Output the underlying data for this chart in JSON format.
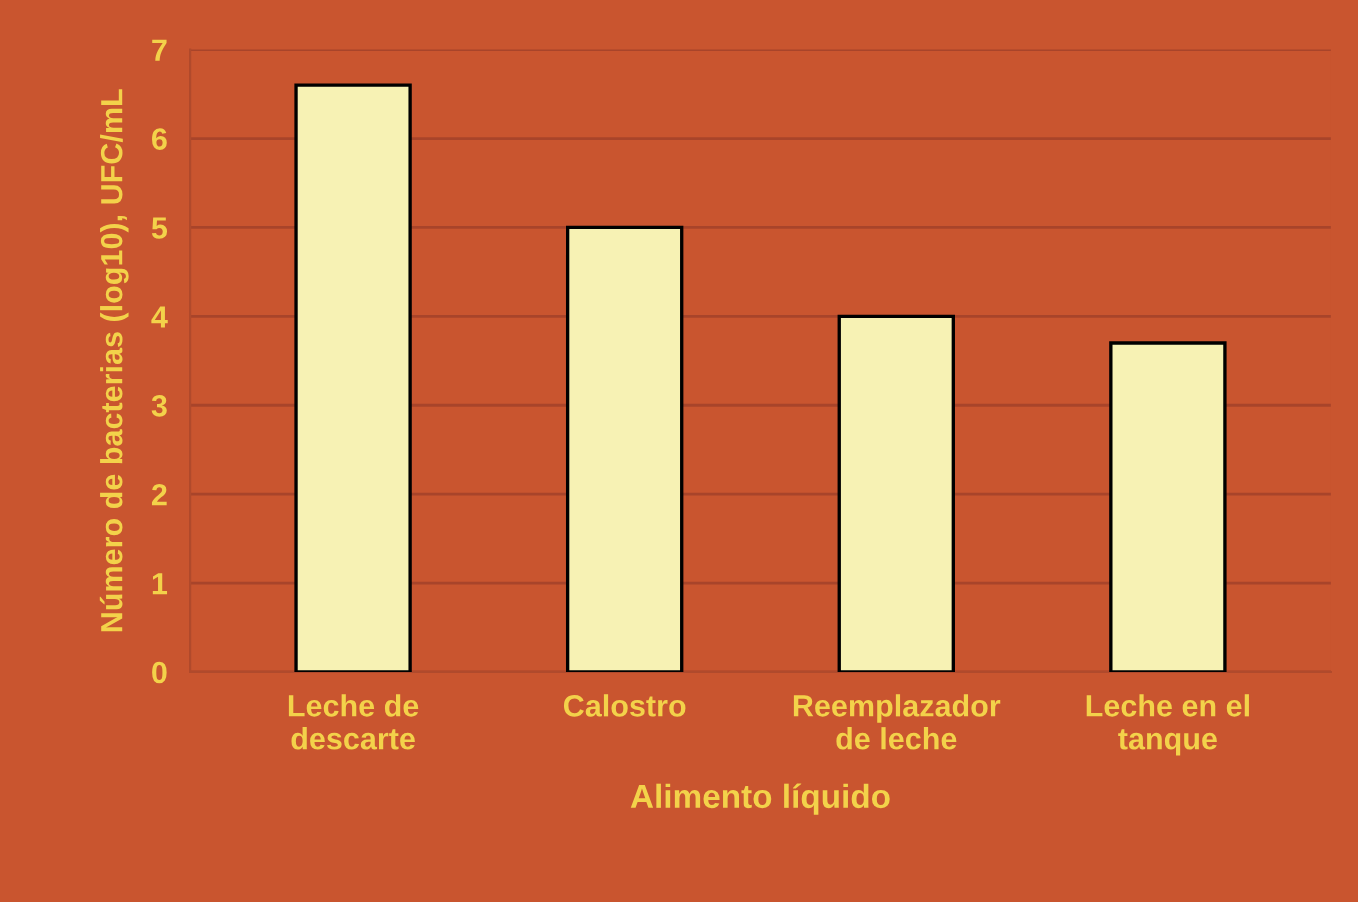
{
  "chart_data": {
    "type": "bar",
    "xlabel": "Alimento líquido",
    "ylabel": "Número de bacterias (log10), UFC/mL",
    "categories": [
      "Leche de\ndescarte",
      "Calostro",
      "Reemplazador\nde leche",
      "Leche en el\ntanque"
    ],
    "values": [
      6.6,
      5.0,
      4.0,
      3.7
    ],
    "color": "#f7f2b4",
    "ylim": [
      0,
      7
    ],
    "yticks": [
      0,
      1,
      2,
      3,
      4,
      5,
      6,
      7
    ],
    "grid": "y"
  }
}
